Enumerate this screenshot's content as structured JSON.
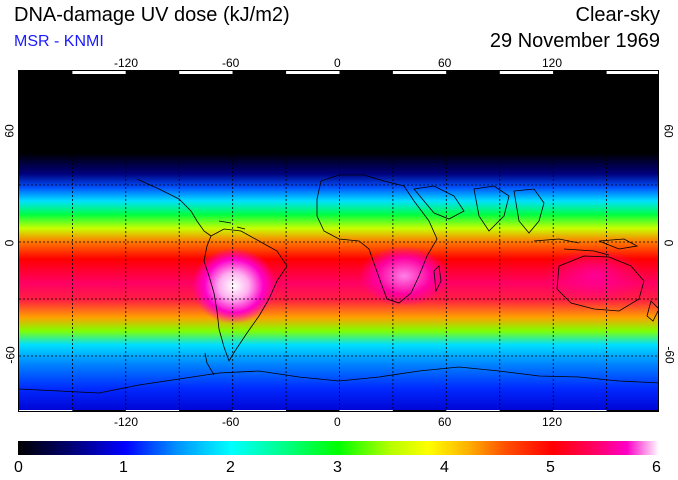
{
  "header": {
    "title": "DNA-damage UV dose (kJ/m2)",
    "source": "MSR - KNMI",
    "condition": "Clear-sky",
    "date": "29 November 1969"
  },
  "map": {
    "lon_ticks": [
      "-120",
      "-60",
      "0",
      "60",
      "120"
    ],
    "lat_ticks": [
      "60",
      "0",
      "-60"
    ],
    "projection": "equirectangular world map with coastlines and dotted 30° graticule",
    "colors": {
      "space_black": "#000000",
      "grid": "#000000",
      "coastline": "#000000"
    }
  },
  "colorbar": {
    "labels": [
      "0",
      "1",
      "2",
      "3",
      "4",
      "5",
      "6"
    ],
    "stops": [
      "#000000",
      "#00006e",
      "#0000ff",
      "#0096ff",
      "#00ffff",
      "#00ff80",
      "#00ff00",
      "#b4ff00",
      "#ffff00",
      "#ffb400",
      "#ff5000",
      "#ff0000",
      "#ff0064",
      "#ff00c8",
      "#ffffff"
    ]
  }
}
